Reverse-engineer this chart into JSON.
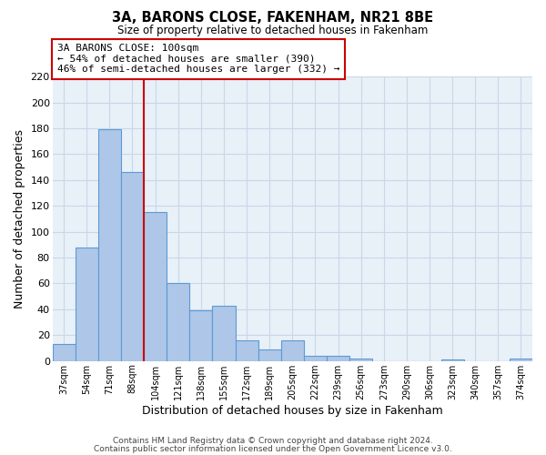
{
  "title": "3A, BARONS CLOSE, FAKENHAM, NR21 8BE",
  "subtitle": "Size of property relative to detached houses in Fakenham",
  "xlabel": "Distribution of detached houses by size in Fakenham",
  "ylabel": "Number of detached properties",
  "bar_labels": [
    "37sqm",
    "54sqm",
    "71sqm",
    "88sqm",
    "104sqm",
    "121sqm",
    "138sqm",
    "155sqm",
    "172sqm",
    "189sqm",
    "205sqm",
    "222sqm",
    "239sqm",
    "256sqm",
    "273sqm",
    "290sqm",
    "306sqm",
    "323sqm",
    "340sqm",
    "357sqm",
    "374sqm"
  ],
  "bar_values": [
    13,
    88,
    179,
    146,
    115,
    60,
    39,
    43,
    16,
    9,
    16,
    4,
    4,
    2,
    0,
    0,
    0,
    1,
    0,
    0,
    2
  ],
  "bar_color": "#aec6e8",
  "bar_edge_color": "#5b9bd5",
  "bar_edge_width": 0.8,
  "vline_x_index": 3.5,
  "vline_color": "#cc0000",
  "ylim": [
    0,
    220
  ],
  "yticks": [
    0,
    20,
    40,
    60,
    80,
    100,
    120,
    140,
    160,
    180,
    200,
    220
  ],
  "grid_color": "#c8d8e8",
  "background_color": "#e8f0f8",
  "annotation_title": "3A BARONS CLOSE: 100sqm",
  "annotation_line1": "← 54% of detached houses are smaller (390)",
  "annotation_line2": "46% of semi-detached houses are larger (332) →",
  "footer_line1": "Contains HM Land Registry data © Crown copyright and database right 2024.",
  "footer_line2": "Contains public sector information licensed under the Open Government Licence v3.0."
}
